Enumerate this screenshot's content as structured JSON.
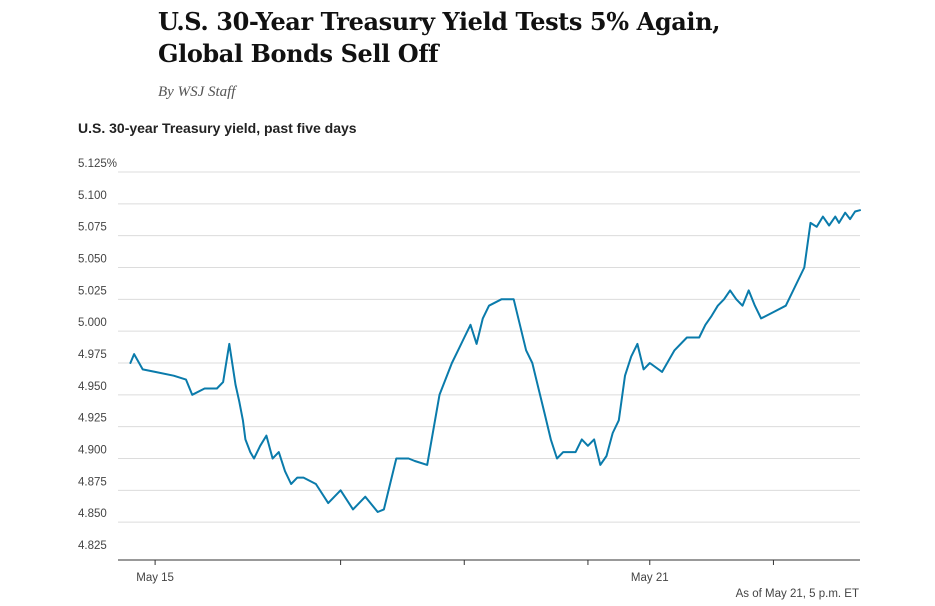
{
  "article": {
    "headline": "U.S. 30-Year Treasury Yield Tests 5% Again, Global Bonds Sell Off",
    "byline": "By WSJ Staff"
  },
  "chart_data": {
    "type": "line",
    "title": "U.S. 30-year Treasury yield, past five days",
    "ylim": [
      4.825,
      5.125
    ],
    "yticks": [
      4.825,
      4.85,
      4.875,
      4.9,
      4.925,
      4.95,
      4.975,
      5.0,
      5.025,
      5.05,
      5.075,
      5.1,
      5.125
    ],
    "ytick_labels": [
      "4.825",
      "4.850",
      "4.875",
      "4.900",
      "4.925",
      "4.950",
      "4.975",
      "5.000",
      "5.025",
      "5.050",
      "5.075",
      "5.100",
      "5.125%"
    ],
    "xlim": [
      -0.1,
      5.9
    ],
    "xtick_positions": [
      0.2,
      1.7,
      2.7,
      3.7,
      4.2,
      5.2
    ],
    "xticks_labeled": [
      {
        "pos": 0.2,
        "label": "May 15"
      },
      {
        "pos": 4.2,
        "label": "May 21"
      }
    ],
    "grid": "horizontal",
    "color": "#0a7bab",
    "series": [
      {
        "x": [
          0.0,
          0.03,
          0.1,
          0.2,
          0.35,
          0.45,
          0.5,
          0.6,
          0.7,
          0.75,
          0.8,
          0.85,
          0.88,
          0.91,
          0.93,
          0.97,
          1.0,
          1.05,
          1.1,
          1.15,
          1.2,
          1.25,
          1.3,
          1.35,
          1.4,
          1.5,
          1.6,
          1.7,
          1.8,
          1.9,
          2.0,
          2.05,
          2.15,
          2.25,
          2.3,
          2.4,
          2.5,
          2.6,
          2.65,
          2.7,
          2.75,
          2.8,
          2.85,
          2.9,
          3.0,
          3.1,
          3.2,
          3.25,
          3.3,
          3.35,
          3.4,
          3.45,
          3.5,
          3.6,
          3.65,
          3.7,
          3.75,
          3.8,
          3.85,
          3.9,
          3.95,
          4.0,
          4.05,
          4.1,
          4.15,
          4.2,
          4.3,
          4.4,
          4.5,
          4.6,
          4.65,
          4.7,
          4.75,
          4.8,
          4.85,
          4.9,
          4.95,
          5.0,
          5.05,
          5.1,
          5.2,
          5.3,
          5.45,
          5.5,
          5.55,
          5.6,
          5.65,
          5.7,
          5.73,
          5.78,
          5.82,
          5.86,
          5.9
        ],
        "y": [
          4.975,
          4.982,
          4.97,
          4.968,
          4.965,
          4.962,
          4.95,
          4.955,
          4.955,
          4.96,
          4.99,
          4.958,
          4.945,
          4.93,
          4.915,
          4.905,
          4.9,
          4.91,
          4.918,
          4.9,
          4.905,
          4.89,
          4.88,
          4.885,
          4.885,
          4.88,
          4.865,
          4.875,
          4.86,
          4.87,
          4.858,
          4.86,
          4.9,
          4.9,
          4.898,
          4.895,
          4.95,
          4.975,
          4.985,
          4.995,
          5.005,
          4.99,
          5.01,
          5.02,
          5.025,
          5.025,
          4.985,
          4.975,
          4.955,
          4.935,
          4.915,
          4.9,
          4.905,
          4.905,
          4.915,
          4.91,
          4.915,
          4.895,
          4.902,
          4.92,
          4.93,
          4.965,
          4.98,
          4.99,
          4.97,
          4.975,
          4.968,
          4.985,
          4.995,
          4.995,
          5.005,
          5.012,
          5.02,
          5.025,
          5.032,
          5.025,
          5.02,
          5.032,
          5.02,
          5.01,
          5.015,
          5.02,
          5.05,
          5.085,
          5.082,
          5.09,
          5.083,
          5.09,
          5.085,
          5.093,
          5.088,
          5.094,
          5.095
        ]
      }
    ],
    "note": "As of May 21, 5 p.m. ET"
  }
}
